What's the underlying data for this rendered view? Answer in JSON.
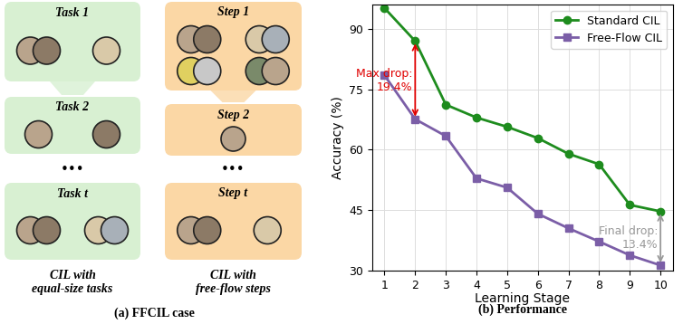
{
  "diagram": {
    "caption": "(a) FFCIL case",
    "columns": [
      {
        "boxes": [
          "Task 1",
          "Task 2",
          "Task t"
        ],
        "ellipsis": "•••",
        "caption": "CIL with\nequal-size tasks",
        "color": "#d8f0d2"
      },
      {
        "boxes": [
          "Step 1",
          "Step 2",
          "Step t"
        ],
        "ellipsis": "•••",
        "caption": "CIL with\nfree-flow steps",
        "color": "#fbd7a5"
      }
    ]
  },
  "chart_data": {
    "type": "line",
    "caption": "(b) Performance",
    "xlabel": "Learning Stage",
    "ylabel": "Accuracy (%)",
    "x": [
      1,
      2,
      3,
      4,
      5,
      6,
      7,
      8,
      9,
      10
    ],
    "series": [
      {
        "name": "Standard CIL",
        "color": "#1e8c1e",
        "marker": "o",
        "values": [
          95.2,
          87.0,
          71.2,
          68.0,
          65.7,
          62.9,
          59.0,
          56.4,
          46.3,
          44.7
        ]
      },
      {
        "name": "Free-Flow CIL",
        "color": "#7b5ea7",
        "marker": "s",
        "values": [
          78.5,
          67.6,
          63.4,
          52.9,
          50.6,
          44.1,
          40.5,
          37.2,
          33.8,
          31.3
        ]
      }
    ],
    "xlim": [
      0.6,
      10.4
    ],
    "ylim": [
      30,
      96
    ],
    "xticks": [
      1,
      2,
      3,
      4,
      5,
      6,
      7,
      8,
      9,
      10
    ],
    "yticks": [
      30,
      45,
      60,
      75,
      90
    ],
    "grid": true,
    "legend": "upper right",
    "annotations": [
      {
        "text": "Max drop:\n19.4%",
        "color": "#e00000"
      },
      {
        "text": "Final drop:\n13.4%",
        "color": "#999999"
      }
    ]
  }
}
